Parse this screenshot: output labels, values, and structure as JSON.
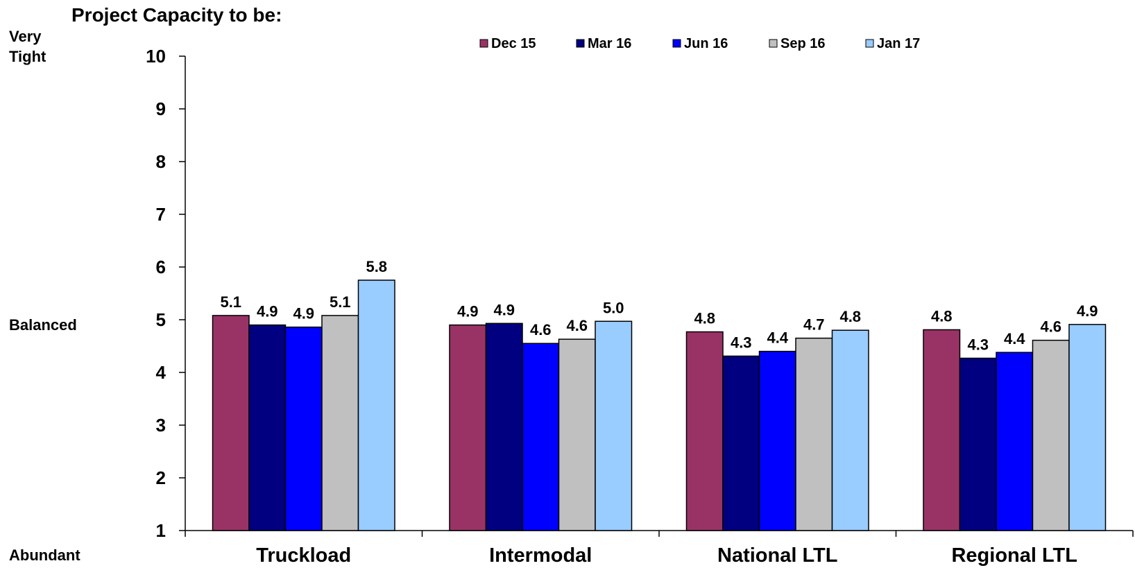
{
  "chart_data": {
    "type": "bar",
    "title": "Project Capacity to be:",
    "y_scale_labels": {
      "top": [
        "Very",
        "Tight"
      ],
      "middle": "Balanced",
      "bottom": "Abundant"
    },
    "ylim": [
      1,
      10
    ],
    "yticks": [
      1,
      2,
      3,
      4,
      5,
      6,
      7,
      8,
      9,
      10
    ],
    "grid": false,
    "legend_position": "top",
    "categories": [
      "Truckload",
      "Intermodal",
      "National LTL",
      "Regional LTL"
    ],
    "series": [
      {
        "name": "Dec 15",
        "color": "#993366",
        "values": [
          5.08,
          4.9,
          4.77,
          4.81
        ],
        "labels": [
          "5.1",
          "4.9",
          "4.8",
          "4.8"
        ]
      },
      {
        "name": "Mar 16",
        "color": "#000080",
        "values": [
          4.9,
          4.93,
          4.31,
          4.27
        ],
        "labels": [
          "4.9",
          "4.9",
          "4.3",
          "4.3"
        ]
      },
      {
        "name": "Jun 16",
        "color": "#0000FF",
        "values": [
          4.86,
          4.55,
          4.4,
          4.38
        ],
        "labels": [
          "4.9",
          "4.6",
          "4.4",
          "4.4"
        ]
      },
      {
        "name": "Sep 16",
        "color": "#C0C0C0",
        "values": [
          5.08,
          4.63,
          4.65,
          4.61
        ],
        "labels": [
          "5.1",
          "4.6",
          "4.7",
          "4.6"
        ]
      },
      {
        "name": "Jan 17",
        "color": "#99CCFF",
        "values": [
          5.75,
          4.97,
          4.8,
          4.91
        ],
        "labels": [
          "5.8",
          "5.0",
          "4.8",
          "4.9"
        ]
      }
    ]
  }
}
